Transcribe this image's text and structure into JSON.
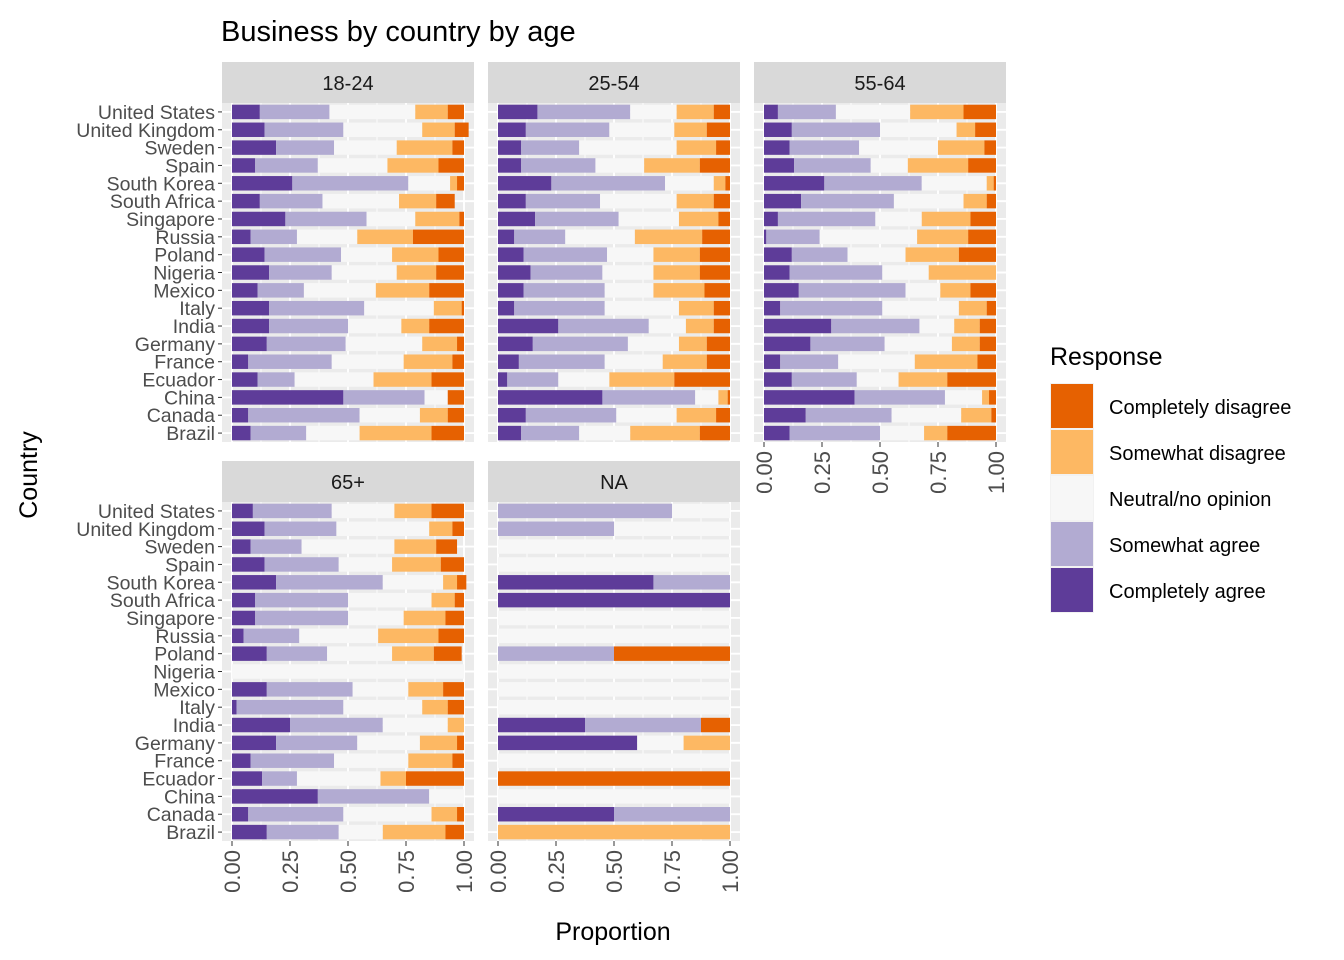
{
  "chart_data": {
    "type": "bar",
    "orientation": "horizontal",
    "stacking": "fill",
    "title": "Business by country by age",
    "xlabel": "Proportion",
    "ylabel": "Country",
    "xlim": [
      0,
      1
    ],
    "x_ticks": [
      "0.00",
      "0.25",
      "0.50",
      "0.75",
      "1.00"
    ],
    "countries": [
      "United States",
      "United Kingdom",
      "Sweden",
      "Spain",
      "South Korea",
      "South Africa",
      "Singapore",
      "Russia",
      "Poland",
      "Nigeria",
      "Mexico",
      "Italy",
      "India",
      "Germany",
      "France",
      "Ecuador",
      "China",
      "Canada",
      "Brazil"
    ],
    "legend": {
      "title": "Response",
      "position": "right",
      "items": [
        {
          "label": "Completely disagree",
          "color": "#e66101"
        },
        {
          "label": "Somewhat disagree",
          "color": "#fdb863"
        },
        {
          "label": "Neutral/no opinion",
          "color": "#f7f7f7"
        },
        {
          "label": "Somewhat agree",
          "color": "#b2abd2"
        },
        {
          "label": "Completely agree",
          "color": "#5e3c99"
        }
      ]
    },
    "segment_order": [
      "Completely agree",
      "Somewhat agree",
      "Neutral/no opinion",
      "Somewhat disagree",
      "Completely disagree"
    ],
    "panels": [
      {
        "label": "18-24",
        "bars": [
          [
            0.12,
            0.3,
            0.37,
            0.14,
            0.07
          ],
          [
            0.14,
            0.34,
            0.34,
            0.14,
            0.06
          ],
          [
            0.19,
            0.25,
            0.27,
            0.24,
            0.05
          ],
          [
            0.1,
            0.27,
            0.3,
            0.22,
            0.11
          ],
          [
            0.26,
            0.5,
            0.18,
            0.03,
            0.03
          ],
          [
            0.12,
            0.27,
            0.33,
            0.16,
            0.08
          ],
          [
            0.23,
            0.35,
            0.21,
            0.19,
            0.02
          ],
          [
            0.08,
            0.2,
            0.26,
            0.24,
            0.22
          ],
          [
            0.14,
            0.33,
            0.22,
            0.2,
            0.11
          ],
          [
            0.16,
            0.27,
            0.28,
            0.17,
            0.12
          ],
          [
            0.11,
            0.2,
            0.31,
            0.23,
            0.15
          ],
          [
            0.16,
            0.41,
            0.3,
            0.12,
            0.01
          ],
          [
            0.16,
            0.34,
            0.23,
            0.12,
            0.15
          ],
          [
            0.15,
            0.34,
            0.33,
            0.15,
            0.03
          ],
          [
            0.07,
            0.36,
            0.31,
            0.21,
            0.05
          ],
          [
            0.11,
            0.16,
            0.34,
            0.25,
            0.14
          ],
          [
            0.48,
            0.35,
            0.1,
            0.0,
            0.07
          ],
          [
            0.07,
            0.48,
            0.26,
            0.12,
            0.07
          ],
          [
            0.08,
            0.24,
            0.23,
            0.31,
            0.14
          ]
        ]
      },
      {
        "label": "25-54",
        "bars": [
          [
            0.17,
            0.4,
            0.2,
            0.16,
            0.07
          ],
          [
            0.12,
            0.36,
            0.28,
            0.14,
            0.1
          ],
          [
            0.1,
            0.25,
            0.42,
            0.17,
            0.06
          ],
          [
            0.1,
            0.32,
            0.21,
            0.24,
            0.13
          ],
          [
            0.23,
            0.49,
            0.21,
            0.05,
            0.02
          ],
          [
            0.12,
            0.32,
            0.33,
            0.16,
            0.07
          ],
          [
            0.16,
            0.36,
            0.26,
            0.17,
            0.05
          ],
          [
            0.07,
            0.22,
            0.3,
            0.29,
            0.12
          ],
          [
            0.11,
            0.36,
            0.2,
            0.2,
            0.13
          ],
          [
            0.14,
            0.31,
            0.22,
            0.2,
            0.13
          ],
          [
            0.11,
            0.35,
            0.21,
            0.22,
            0.11
          ],
          [
            0.07,
            0.39,
            0.32,
            0.15,
            0.07
          ],
          [
            0.26,
            0.39,
            0.16,
            0.12,
            0.07
          ],
          [
            0.15,
            0.41,
            0.22,
            0.12,
            0.1
          ],
          [
            0.09,
            0.37,
            0.25,
            0.19,
            0.1
          ],
          [
            0.04,
            0.22,
            0.22,
            0.28,
            0.24
          ],
          [
            0.45,
            0.4,
            0.1,
            0.04,
            0.01
          ],
          [
            0.12,
            0.39,
            0.26,
            0.17,
            0.06
          ],
          [
            0.1,
            0.25,
            0.22,
            0.3,
            0.13
          ]
        ]
      },
      {
        "label": "55-64",
        "bars": [
          [
            0.06,
            0.25,
            0.32,
            0.23,
            0.14
          ],
          [
            0.12,
            0.38,
            0.33,
            0.08,
            0.09
          ],
          [
            0.11,
            0.3,
            0.34,
            0.2,
            0.05
          ],
          [
            0.13,
            0.33,
            0.16,
            0.26,
            0.12
          ],
          [
            0.26,
            0.42,
            0.28,
            0.03,
            0.01
          ],
          [
            0.16,
            0.4,
            0.3,
            0.1,
            0.04
          ],
          [
            0.06,
            0.42,
            0.2,
            0.21,
            0.11
          ],
          [
            0.01,
            0.23,
            0.42,
            0.22,
            0.12
          ],
          [
            0.12,
            0.24,
            0.25,
            0.23,
            0.16
          ],
          [
            0.11,
            0.4,
            0.2,
            0.29,
            0.0
          ],
          [
            0.15,
            0.46,
            0.15,
            0.13,
            0.11
          ],
          [
            0.07,
            0.44,
            0.33,
            0.12,
            0.04
          ],
          [
            0.29,
            0.38,
            0.15,
            0.11,
            0.07
          ],
          [
            0.2,
            0.32,
            0.29,
            0.12,
            0.07
          ],
          [
            0.07,
            0.25,
            0.33,
            0.27,
            0.08
          ],
          [
            0.12,
            0.28,
            0.18,
            0.21,
            0.21
          ],
          [
            0.39,
            0.39,
            0.16,
            0.03,
            0.03
          ],
          [
            0.18,
            0.37,
            0.3,
            0.13,
            0.02
          ],
          [
            0.11,
            0.39,
            0.19,
            0.1,
            0.21
          ]
        ]
      },
      {
        "label": "65+",
        "bars": [
          [
            0.09,
            0.34,
            0.27,
            0.16,
            0.14
          ],
          [
            0.14,
            0.31,
            0.4,
            0.1,
            0.05
          ],
          [
            0.08,
            0.22,
            0.4,
            0.18,
            0.09
          ],
          [
            0.14,
            0.32,
            0.23,
            0.21,
            0.1
          ],
          [
            0.19,
            0.46,
            0.26,
            0.06,
            0.04
          ],
          [
            0.1,
            0.4,
            0.36,
            0.1,
            0.04
          ],
          [
            0.1,
            0.4,
            0.24,
            0.18,
            0.08
          ],
          [
            0.05,
            0.24,
            0.34,
            0.26,
            0.11
          ],
          [
            0.15,
            0.26,
            0.28,
            0.18,
            0.12
          ],
          [
            0.0,
            0.0,
            1.0,
            0.0,
            0.0
          ],
          [
            0.15,
            0.37,
            0.24,
            0.15,
            0.09
          ],
          [
            0.02,
            0.46,
            0.34,
            0.11,
            0.07
          ],
          [
            0.25,
            0.4,
            0.28,
            0.07,
            0.0
          ],
          [
            0.19,
            0.35,
            0.27,
            0.16,
            0.03
          ],
          [
            0.08,
            0.36,
            0.32,
            0.19,
            0.05
          ],
          [
            0.13,
            0.15,
            0.36,
            0.11,
            0.25
          ],
          [
            0.37,
            0.48,
            0.15,
            0.0,
            0.0
          ],
          [
            0.07,
            0.41,
            0.38,
            0.11,
            0.03
          ],
          [
            0.15,
            0.31,
            0.19,
            0.27,
            0.08
          ]
        ]
      },
      {
        "label": "NA",
        "bars": [
          [
            0.0,
            0.75,
            0.25,
            0.0,
            0.0
          ],
          [
            0.0,
            0.5,
            0.5,
            0.0,
            0.0
          ],
          [
            0.0,
            0.0,
            1.0,
            0.0,
            0.0
          ],
          [
            0.0,
            0.0,
            1.0,
            0.0,
            0.0
          ],
          [
            0.67,
            0.33,
            0.0,
            0.0,
            0.0
          ],
          [
            1.0,
            0.0,
            0.0,
            0.0,
            0.0
          ],
          [
            0.0,
            0.0,
            1.0,
            0.0,
            0.0
          ],
          [
            0.0,
            0.0,
            1.0,
            0.0,
            0.0
          ],
          [
            0.0,
            0.5,
            0.0,
            0.0,
            0.5
          ],
          [
            0.0,
            0.0,
            1.0,
            0.0,
            0.0
          ],
          [
            0.0,
            0.0,
            1.0,
            0.0,
            0.0
          ],
          [
            0.0,
            0.0,
            1.0,
            0.0,
            0.0
          ],
          [
            0.375,
            0.5,
            0.0,
            0.0,
            0.125
          ],
          [
            0.6,
            0.0,
            0.2,
            0.2,
            0.0
          ],
          [
            0.0,
            0.0,
            1.0,
            0.0,
            0.0
          ],
          [
            0.0,
            0.0,
            0.0,
            0.0,
            1.0
          ],
          [
            0.0,
            0.0,
            1.0,
            0.0,
            0.0
          ],
          [
            0.5,
            0.5,
            0.0,
            0.0,
            0.0
          ],
          [
            0.0,
            0.0,
            0.0,
            1.0,
            0.0
          ]
        ]
      }
    ]
  }
}
